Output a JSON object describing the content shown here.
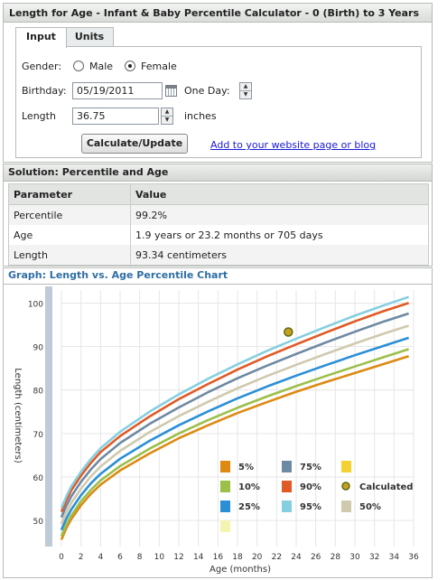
{
  "title": "Length for Age - Infant & Baby Percentile Calculator - 0 (Birth) to 3 Years",
  "tabs": [
    {
      "label": "Input"
    },
    {
      "label": "Units"
    }
  ],
  "form": {
    "gender_label": "Gender:",
    "gender_options": [
      "Male",
      "Female"
    ],
    "gender_selected": "Female",
    "birthday_label": "Birthday:",
    "birthday_value": "05/19/2011",
    "oneday_label": "One Day:",
    "length_label": "Length",
    "length_value": "36.75",
    "length_unit": "inches",
    "calculate_label": "Calculate/Update",
    "add_link": "Add to your website page or blog"
  },
  "solution": {
    "header": "Solution: Percentile and Age",
    "columns": [
      "Parameter",
      "Value"
    ],
    "rows": [
      {
        "parameter": "Percentile",
        "value": "99.2%"
      },
      {
        "parameter": "Age",
        "value": "1.9 years  or  23.2 months  or  705 days"
      },
      {
        "parameter": "Length",
        "value": "93.34 centimeters"
      }
    ]
  },
  "graph_header": "Graph: Length vs. Age Percentile Chart",
  "chart_data": {
    "type": "line",
    "xlabel": "Age (months)",
    "ylabel": "Length (centimeters)",
    "xlim": [
      0,
      36
    ],
    "ylim": [
      44,
      103
    ],
    "xticks": [
      0,
      2,
      4,
      6,
      8,
      10,
      12,
      14,
      16,
      18,
      20,
      22,
      24,
      26,
      28,
      30,
      32,
      34,
      36
    ],
    "yticks": [
      50,
      60,
      70,
      80,
      90,
      100
    ],
    "grid": true,
    "x": [
      0,
      0.5,
      1,
      2,
      3,
      4,
      6,
      9,
      12,
      15,
      18,
      21,
      24,
      27,
      30,
      33,
      35.5
    ],
    "series": [
      {
        "name": "5%",
        "color": "#dc8a12",
        "values": [
          45.6,
          48.2,
          50.3,
          53.5,
          56.1,
          58.2,
          61.5,
          65.4,
          68.9,
          71.9,
          74.7,
          77.2,
          79.6,
          81.8,
          83.9,
          86.0,
          87.8
        ]
      },
      {
        "name": "10%",
        "color": "#9cbf4a",
        "values": [
          46.4,
          49.0,
          51.1,
          54.4,
          57.0,
          59.2,
          62.5,
          66.5,
          70.0,
          73.1,
          75.9,
          78.5,
          80.9,
          83.2,
          85.4,
          87.6,
          89.4
        ]
      },
      {
        "name": "25%",
        "color": "#2b8fd6",
        "values": [
          47.8,
          50.4,
          52.5,
          55.8,
          58.5,
          60.7,
          64.2,
          68.3,
          71.9,
          75.1,
          78.1,
          80.8,
          83.3,
          85.7,
          88.0,
          90.2,
          92.0
        ]
      },
      {
        "name": "50%",
        "color": "#cfc9ad",
        "values": [
          49.2,
          51.8,
          54.0,
          57.3,
          60.1,
          62.4,
          66.0,
          70.3,
          74.0,
          77.3,
          80.4,
          83.2,
          85.8,
          88.3,
          90.7,
          93.0,
          94.8
        ]
      },
      {
        "name": "75%",
        "color": "#6e89a3",
        "values": [
          50.7,
          53.3,
          55.5,
          58.9,
          61.7,
          64.1,
          67.8,
          72.2,
          76.0,
          79.5,
          82.7,
          85.6,
          88.3,
          90.9,
          93.4,
          95.8,
          97.6
        ]
      },
      {
        "name": "90%",
        "color": "#e05a25",
        "values": [
          52.0,
          54.6,
          56.9,
          60.3,
          63.2,
          65.7,
          69.4,
          73.9,
          77.9,
          81.4,
          84.7,
          87.7,
          90.5,
          93.2,
          95.8,
          98.2,
          100.0
        ]
      },
      {
        "name": "95%",
        "color": "#86cfe0",
        "values": [
          52.9,
          55.5,
          57.8,
          61.2,
          64.1,
          66.6,
          70.4,
          75.0,
          79.0,
          82.6,
          85.9,
          89.0,
          91.8,
          94.5,
          97.1,
          99.5,
          101.4
        ]
      }
    ],
    "legend": [
      {
        "name": "5%",
        "color": "#dc8a12"
      },
      {
        "name": "75%",
        "color": "#6e89a3"
      },
      {
        "name": "",
        "color": "#f5d033"
      },
      {
        "name": "10%",
        "color": "#9cbf4a"
      },
      {
        "name": "90%",
        "color": "#e05a25"
      },
      {
        "name": "Calculated",
        "color": "#8a9a20"
      },
      {
        "name": "25%",
        "color": "#2b8fd6"
      },
      {
        "name": "95%",
        "color": "#86cfe0"
      },
      {
        "name": "50%",
        "color": "#cfc9ad"
      },
      {
        "name": "",
        "color": "#f2f5b0"
      }
    ],
    "calculated_point": {
      "x": 23.2,
      "y": 93.34,
      "label": "Calculated"
    },
    "legend_position": "bottom-right"
  },
  "colors": {
    "accent": "#2f6ea5",
    "link": "#1a1ad8",
    "calculated_point": "#8a9a20"
  }
}
